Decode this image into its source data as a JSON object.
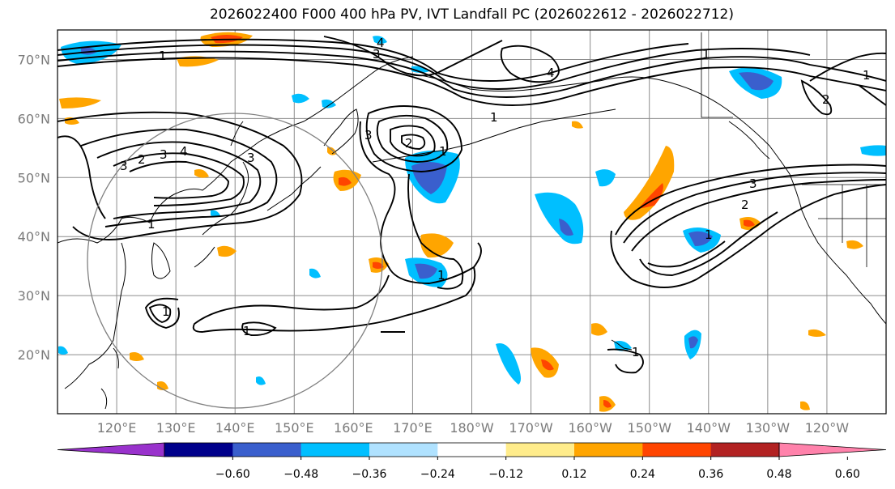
{
  "title": "2026022400 F000 400 hPa PV, IVT Landfall PC (2026022612 - 2026022712)",
  "map": {
    "lat_labels": [
      "70°N",
      "60°N",
      "50°N",
      "40°N",
      "30°N",
      "20°N"
    ],
    "lon_labels": [
      "120°E",
      "130°E",
      "140°E",
      "150°E",
      "160°E",
      "170°E",
      "180°W",
      "170°W",
      "160°W",
      "150°W",
      "140°W",
      "130°W",
      "120°W"
    ],
    "contour_labels": [
      "1",
      "2",
      "3",
      "4"
    ],
    "extent": {
      "lon_min": 110,
      "lon_max": 250,
      "lat_min": 10,
      "lat_max": 75
    }
  },
  "colorbar": {
    "ticks": [
      "−0.60",
      "−0.48",
      "−0.36",
      "−0.24",
      "−0.12",
      "0.12",
      "0.24",
      "0.36",
      "0.48",
      "0.60"
    ],
    "colors": [
      "#9932cc",
      "#00008b",
      "#3a5fcd",
      "#00bfff",
      "#b0e2ff",
      "#ffffff",
      "#ffec8b",
      "#ffa500",
      "#ff4500",
      "#b22222",
      "#ff82ab"
    ],
    "extend": "both"
  },
  "colors": {
    "grid": "#8c8c8c",
    "coast": "#000000",
    "contour": "#000000",
    "circle": "#808080"
  }
}
